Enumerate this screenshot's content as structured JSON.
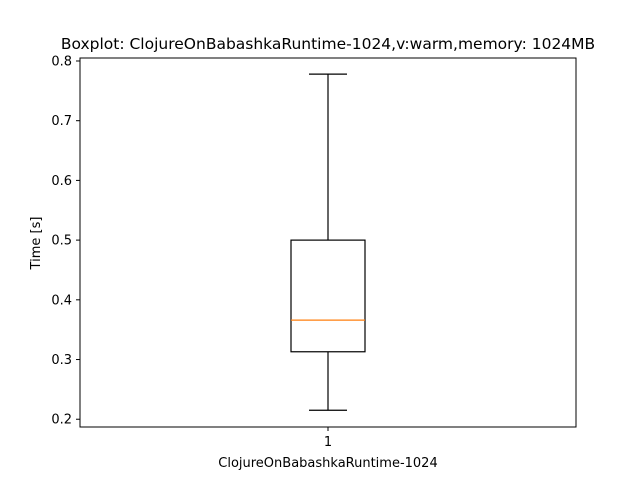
{
  "chart_data": {
    "type": "boxplot",
    "title": "Boxplot: ClojureOnBabashkaRuntime-1024,v:warm,memory: 1024MB",
    "xlabel": "ClojureOnBabashkaRuntime-1024",
    "ylabel": "Time [s]",
    "ylim": [
      0.187,
      0.805
    ],
    "yticks": [
      "0.2",
      "0.3",
      "0.4",
      "0.5",
      "0.6",
      "0.7",
      "0.8"
    ],
    "xticks": [
      "1"
    ],
    "grid": false,
    "legend": "none",
    "boxes": [
      {
        "position": 1,
        "whisker_low": 0.215,
        "q1": 0.313,
        "median": 0.366,
        "q3": 0.5,
        "whisker_high": 0.778
      }
    ],
    "colors": {
      "box": "#000000",
      "median": "#ff7f0e"
    }
  }
}
